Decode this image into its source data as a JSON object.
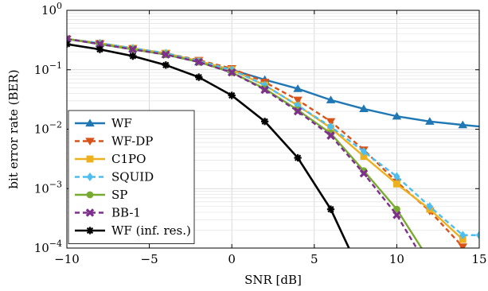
{
  "chart_data": {
    "type": "line",
    "xlabel": "SNR [dB]",
    "ylabel": "bit error rate (BER)",
    "xlim": [
      -10,
      15
    ],
    "ylim": [
      0.0001,
      1
    ],
    "yscale": "log",
    "grid": true,
    "legend_position": "bottom-left",
    "x_ticks": [
      -10,
      -5,
      0,
      5,
      10,
      15
    ],
    "x_tick_labels": [
      "−10",
      "−5",
      "0",
      "5",
      "10",
      "15"
    ],
    "y_ticks": [
      0.0001,
      0.001,
      0.01,
      0.1,
      1
    ],
    "y_tick_labels": [
      {
        "base": "10",
        "exp": "−4"
      },
      {
        "base": "10",
        "exp": "−3"
      },
      {
        "base": "10",
        "exp": "−2"
      },
      {
        "base": "10",
        "exp": "−1"
      },
      {
        "base": "10",
        "exp": "0"
      }
    ],
    "series": [
      {
        "name": "WF",
        "color": "#1f77b4",
        "dash": "solid",
        "marker": "triangle-up",
        "x": [
          -10,
          -8,
          -6,
          -4,
          -2,
          0,
          2,
          4,
          6,
          8,
          10,
          12,
          14,
          16
        ],
        "y": [
          0.33,
          0.28,
          0.23,
          0.18,
          0.135,
          0.1,
          0.068,
          0.048,
          0.031,
          0.022,
          0.0165,
          0.0135,
          0.0118,
          0.0105
        ]
      },
      {
        "name": "WF-DP",
        "color": "#d95319",
        "dash": "dashed",
        "marker": "triangle-down",
        "x": [
          -10,
          -8,
          -6,
          -4,
          -2,
          0,
          2,
          4,
          6,
          8,
          10,
          12,
          14
        ],
        "y": [
          0.33,
          0.28,
          0.23,
          0.19,
          0.145,
          0.105,
          0.062,
          0.031,
          0.0135,
          0.0045,
          0.0013,
          0.00042,
          0.000105
        ]
      },
      {
        "name": "C1PO",
        "color": "#edb120",
        "dash": "solid",
        "marker": "square",
        "x": [
          -10,
          -8,
          -6,
          -4,
          -2,
          0,
          2,
          4,
          6,
          8,
          10,
          12,
          14
        ],
        "y": [
          0.33,
          0.28,
          0.23,
          0.19,
          0.14,
          0.1,
          0.055,
          0.025,
          0.0105,
          0.0035,
          0.0012,
          0.00045,
          0.00014
        ]
      },
      {
        "name": "SQUID",
        "color": "#4dbeee",
        "dash": "dashed",
        "marker": "diamond",
        "x": [
          -10,
          -8,
          -6,
          -4,
          -2,
          0,
          2,
          4,
          6,
          8,
          10,
          12,
          14,
          15
        ],
        "y": [
          0.33,
          0.28,
          0.23,
          0.19,
          0.14,
          0.1,
          0.055,
          0.025,
          0.011,
          0.0042,
          0.0016,
          0.0005,
          0.000165,
          0.000165
        ]
      },
      {
        "name": "SP",
        "color": "#77ac30",
        "dash": "solid",
        "marker": "circle",
        "x": [
          -10,
          -8,
          -6,
          -4,
          -2,
          0,
          2,
          4,
          6,
          8,
          10,
          11.5
        ],
        "y": [
          0.33,
          0.27,
          0.22,
          0.18,
          0.135,
          0.09,
          0.048,
          0.021,
          0.0085,
          0.002,
          0.00045,
          0.0001
        ]
      },
      {
        "name": "BB-1",
        "color": "#7e2f8e",
        "dash": "dashed",
        "marker": "x",
        "x": [
          -10,
          -8,
          -6,
          -4,
          -2,
          0,
          2,
          4,
          6,
          8,
          10,
          11.2
        ],
        "y": [
          0.33,
          0.27,
          0.22,
          0.18,
          0.135,
          0.09,
          0.046,
          0.02,
          0.0078,
          0.0018,
          0.00036,
          0.0001
        ]
      },
      {
        "name": "WF (inf. res.)",
        "color": "#000000",
        "dash": "solid",
        "marker": "star",
        "x": [
          -10,
          -8,
          -6,
          -4,
          -2,
          0,
          2,
          4,
          6,
          7.1
        ],
        "y": [
          0.27,
          0.22,
          0.17,
          0.12,
          0.075,
          0.037,
          0.0135,
          0.0033,
          0.00045,
          0.0001
        ]
      }
    ]
  }
}
